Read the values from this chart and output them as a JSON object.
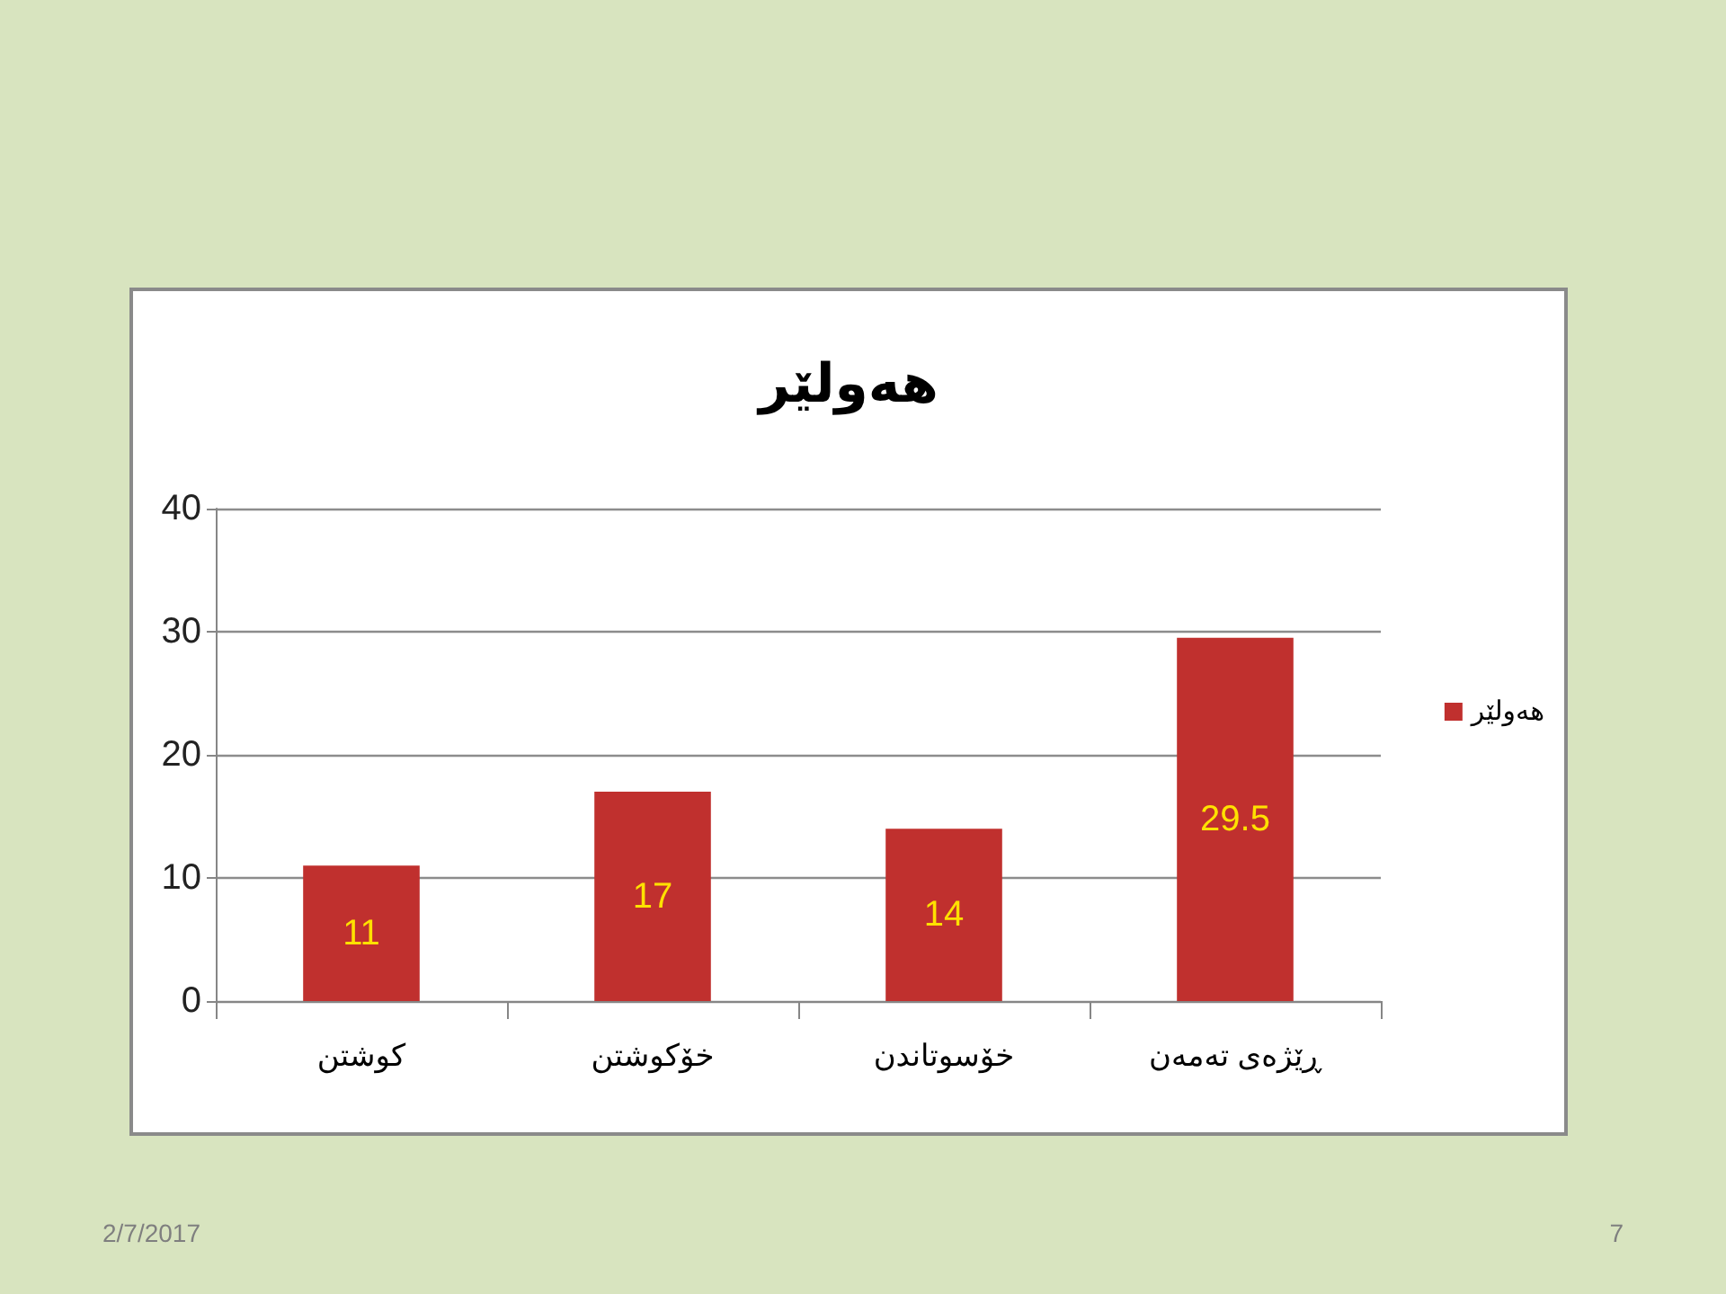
{
  "chart_data": {
    "type": "bar",
    "title": "هەولێر",
    "categories": [
      "کوشتن",
      "خۆکوشتن",
      "خۆسوتاندن",
      "ڕێژەی تەمەن"
    ],
    "series": [
      {
        "name": "هەولێر",
        "color": "#c0302e",
        "values": [
          11,
          17,
          14,
          29.5
        ]
      }
    ],
    "ylim": [
      0,
      40
    ],
    "yticks": [
      0,
      10,
      20,
      30,
      40
    ],
    "grid": "y",
    "legend": "right",
    "data_labels": true,
    "annotations": [
      "2/7/2017",
      "7"
    ]
  }
}
